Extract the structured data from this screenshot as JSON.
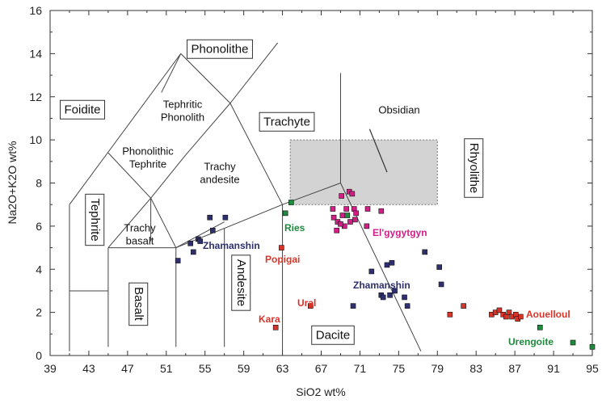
{
  "chart_data": {
    "type": "scatter",
    "title": "",
    "xlabel": "SiO2  wt%",
    "ylabel": "Na2O+K2O wt%",
    "xlim": [
      39,
      95
    ],
    "ylim": [
      0,
      16
    ],
    "grid": false,
    "x_ticks": [
      "39",
      "43",
      "47",
      "51",
      "55",
      "59",
      "63",
      "67",
      "71",
      "75",
      "79",
      "83",
      "87",
      "91",
      "95"
    ],
    "y_ticks": [
      "0",
      "2",
      "4",
      "6",
      "8",
      "10",
      "12",
      "14",
      "16"
    ],
    "fields": [
      {
        "name": "Foidite",
        "boxed": true
      },
      {
        "name": "Phonolithe",
        "boxed": true
      },
      {
        "name": "Tephritic Phonolith",
        "boxed": false
      },
      {
        "name": "Phonolithic Tephrite",
        "boxed": false
      },
      {
        "name": "Trachy andesite",
        "boxed": false
      },
      {
        "name": "Trachyte",
        "boxed": true
      },
      {
        "name": "Obsidian",
        "boxed": false
      },
      {
        "name": "Rhyolithe",
        "boxed": true
      },
      {
        "name": "Tephrite",
        "boxed": true
      },
      {
        "name": "Trachy basalt",
        "boxed": false
      },
      {
        "name": "Basalt",
        "boxed": true
      },
      {
        "name": "Andesite",
        "boxed": true
      },
      {
        "name": "Dacite",
        "boxed": true
      }
    ],
    "site_labels": [
      {
        "name": "Zhamanshin",
        "color": "#2d2f6e"
      },
      {
        "name": "Ries",
        "color": "#1e8a3c"
      },
      {
        "name": "Popigai",
        "color": "#d8352a"
      },
      {
        "name": "El'gygytgyn",
        "color": "#d11f86"
      },
      {
        "name": "Zhamanshin",
        "color": "#2d2f6e"
      },
      {
        "name": "Ural",
        "color": "#d8352a"
      },
      {
        "name": "Kara",
        "color": "#d8352a"
      },
      {
        "name": "Aouelloul",
        "color": "#d8352a"
      },
      {
        "name": "Urengoite",
        "color": "#1e8a3c"
      }
    ],
    "series": [
      {
        "color": "#2d2f6e",
        "points": [
          [
            52.2,
            4.4
          ],
          [
            53.5,
            5.2
          ],
          [
            53.8,
            4.8
          ],
          [
            54.3,
            5.4
          ],
          [
            54.5,
            5.3
          ],
          [
            55.5,
            6.4
          ],
          [
            55.8,
            5.8
          ],
          [
            57.1,
            6.4
          ],
          [
            73.2,
            2.8
          ],
          [
            73.8,
            4.2
          ],
          [
            74.3,
            4.3
          ],
          [
            74.6,
            3.0
          ],
          [
            75.6,
            2.7
          ],
          [
            75.9,
            2.3
          ],
          [
            77.7,
            4.8
          ],
          [
            79.2,
            4.1
          ],
          [
            79.4,
            3.3
          ],
          [
            73.4,
            2.7
          ],
          [
            70.3,
            2.3
          ],
          [
            72.2,
            3.9
          ],
          [
            74.1,
            2.8
          ]
        ]
      },
      {
        "color": "#d11f86",
        "points": [
          [
            68.2,
            6.8
          ],
          [
            68.3,
            6.4
          ],
          [
            68.7,
            6.2
          ],
          [
            69.1,
            7.4
          ],
          [
            69.2,
            6.5
          ],
          [
            69.4,
            6.0
          ],
          [
            69.6,
            6.8
          ],
          [
            69.9,
            7.6
          ],
          [
            70.0,
            6.2
          ],
          [
            70.2,
            7.5
          ],
          [
            70.4,
            6.8
          ],
          [
            70.6,
            6.6
          ],
          [
            71.7,
            6.0
          ],
          [
            71.8,
            6.8
          ],
          [
            73.2,
            6.7
          ],
          [
            69.0,
            6.1
          ],
          [
            70.5,
            6.3
          ],
          [
            68.6,
            5.8
          ]
        ]
      },
      {
        "color": "#d8352a",
        "points": [
          [
            62.3,
            1.3
          ],
          [
            62.9,
            5.0
          ],
          [
            65.9,
            2.3
          ],
          [
            80.3,
            1.9
          ],
          [
            81.7,
            2.3
          ],
          [
            84.6,
            1.9
          ],
          [
            85.0,
            2.0
          ],
          [
            85.4,
            2.1
          ],
          [
            85.8,
            1.9
          ],
          [
            86.1,
            1.8
          ],
          [
            86.4,
            2.0
          ],
          [
            86.7,
            1.8
          ],
          [
            87.1,
            1.9
          ],
          [
            87.3,
            1.7
          ],
          [
            87.6,
            1.8
          ]
        ]
      },
      {
        "color": "#1e8a3c",
        "points": [
          [
            63.3,
            6.6
          ],
          [
            63.9,
            7.1
          ],
          [
            69.7,
            6.5
          ],
          [
            89.6,
            1.3
          ],
          [
            93.0,
            0.6
          ],
          [
            95.0,
            0.4
          ]
        ]
      }
    ]
  }
}
